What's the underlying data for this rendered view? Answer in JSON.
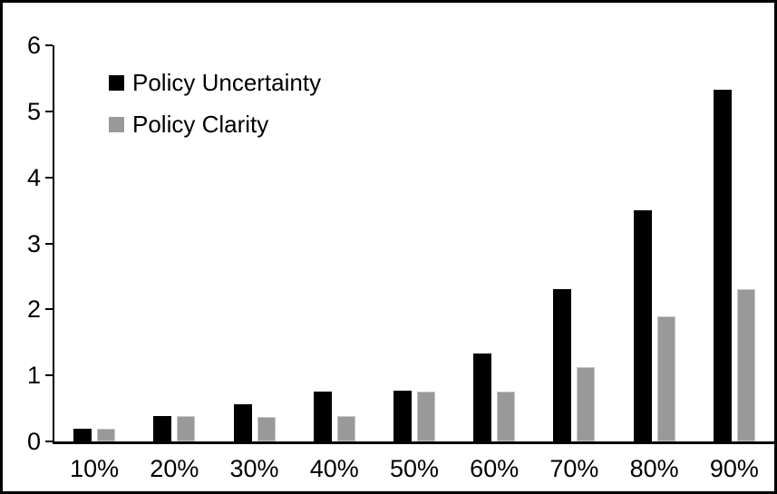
{
  "figure": {
    "background_color": "#ffffff",
    "border_color": "#000000",
    "title": ""
  },
  "legend": {
    "items": [
      {
        "label": "Policy Uncertainty",
        "color": "#000000"
      },
      {
        "label": "Policy Clarity",
        "color": "#999999"
      }
    ]
  },
  "chart_data": {
    "type": "bar",
    "categories": [
      "10%",
      "20%",
      "30%",
      "40%",
      "50%",
      "60%",
      "70%",
      "80%",
      "90%"
    ],
    "series": [
      {
        "name": "Policy Uncertainty",
        "color": "#000000",
        "values": [
          0.19,
          0.39,
          0.56,
          0.75,
          0.77,
          1.33,
          2.31,
          3.5,
          5.33
        ]
      },
      {
        "name": "Policy Clarity",
        "color": "#999999",
        "values": [
          0.19,
          0.38,
          0.37,
          0.38,
          0.76,
          0.76,
          1.13,
          1.9,
          2.3
        ]
      }
    ],
    "title": "",
    "xlabel": "",
    "ylabel": "",
    "ylim": [
      0,
      6
    ],
    "yticks": [
      0,
      1,
      2,
      3,
      4,
      5,
      6
    ],
    "grid": false,
    "legend_position": "top-left-inside"
  }
}
